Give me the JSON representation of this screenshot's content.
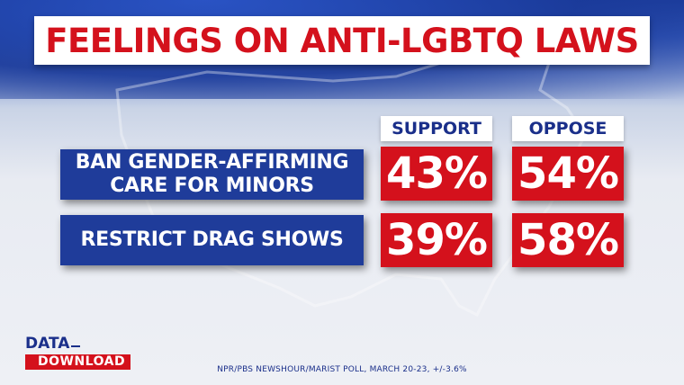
{
  "title": "FEELINGS ON ANTI-LGBTQ LAWS",
  "logo": {
    "line1": "DATA",
    "line2": "DOWNLOAD"
  },
  "source": "NPR/PBS NEWSHOUR/MARIST POLL, MARCH 20-23, +/-3.6%",
  "colors": {
    "red": "#d4111c",
    "blue": "#1f3c9a",
    "white": "#ffffff"
  },
  "chart_data": {
    "type": "table",
    "title": "FEELINGS ON ANTI-LGBTQ LAWS",
    "columns": [
      "SUPPORT",
      "OPPOSE"
    ],
    "rows": [
      {
        "label": "BAN GENDER-AFFIRMING CARE FOR MINORS",
        "line1": "BAN GENDER-AFFIRMING",
        "line2": "CARE FOR MINORS",
        "support": "43%",
        "oppose": "54%",
        "support_value": 43,
        "oppose_value": 54
      },
      {
        "label": "RESTRICT DRAG SHOWS",
        "line1": "RESTRICT DRAG SHOWS",
        "line2": "",
        "support": "39%",
        "oppose": "58%",
        "support_value": 39,
        "oppose_value": 58
      }
    ]
  }
}
